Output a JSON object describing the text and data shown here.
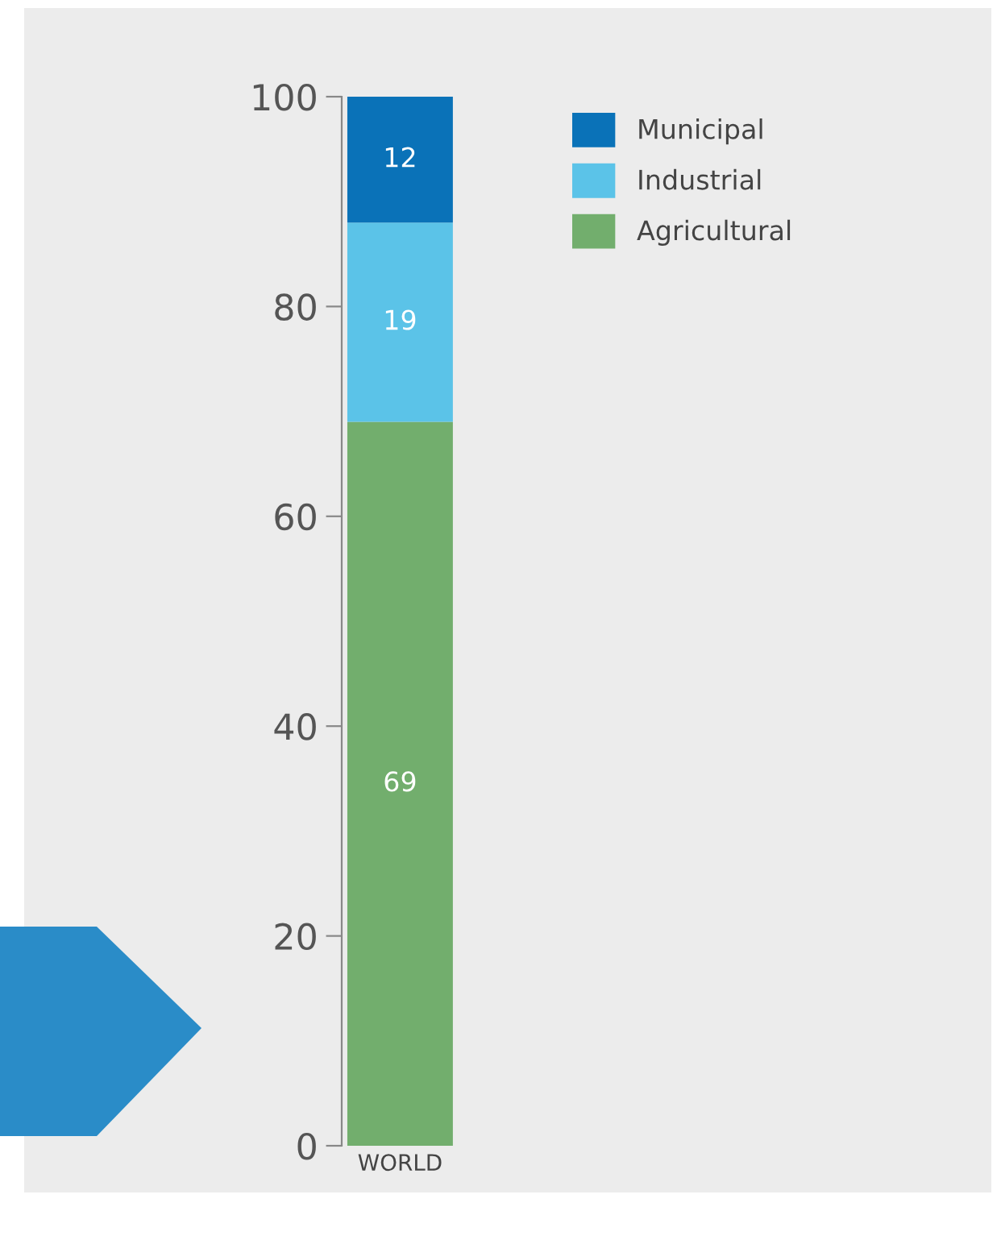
{
  "chart_data": {
    "type": "bar",
    "stacked": true,
    "categories": [
      "WORLD"
    ],
    "series": [
      {
        "name": "Agricultural",
        "color": "#72ae6d",
        "values": [
          69
        ]
      },
      {
        "name": "Industrial",
        "color": "#5bc3e8",
        "values": [
          19
        ]
      },
      {
        "name": "Municipal",
        "color": "#0a72b8",
        "values": [
          12
        ]
      }
    ],
    "ylim": [
      0,
      100
    ],
    "yticks": [
      0,
      20,
      40,
      60,
      80,
      100
    ],
    "data_labels": true,
    "legend": "top right",
    "grid": false
  }
}
